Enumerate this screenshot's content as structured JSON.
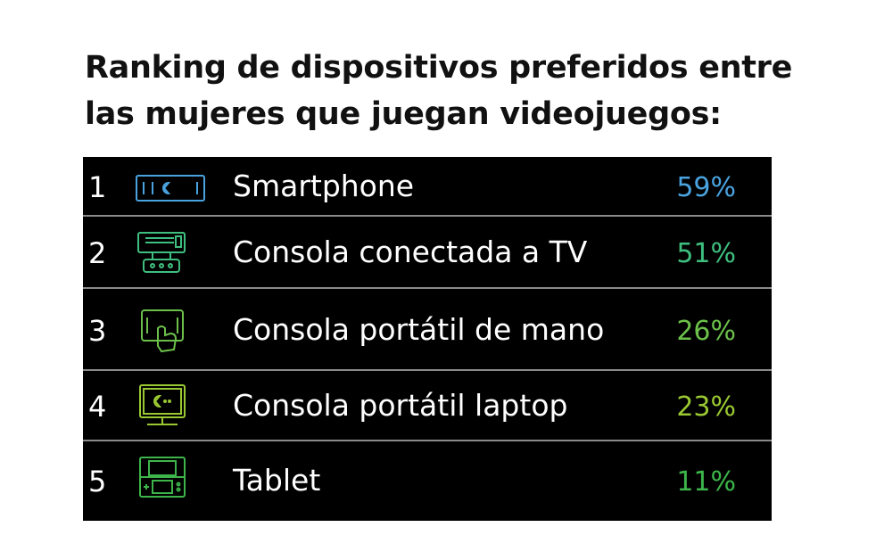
{
  "chart_data": {
    "type": "table",
    "title_lines": [
      "Ranking de dispositivos preferidos entre",
      "las mujeres que juegan videojuegos:"
    ],
    "rows": [
      {
        "rank": "1",
        "label": "Smartphone",
        "value_text": "59%",
        "value": 59,
        "icon": "smartphone-icon",
        "color": "#4aa3df"
      },
      {
        "rank": "2",
        "label": "Consola conectada a TV",
        "value_text": "51%",
        "value": 51,
        "icon": "tv-console-icon",
        "color": "#3fbf7f"
      },
      {
        "rank": "3",
        "label": "Consola portátil de mano",
        "value_text": "26%",
        "value": 26,
        "icon": "handheld-console-icon",
        "color": "#6cc04a"
      },
      {
        "rank": "4",
        "label": "Consola portátil laptop",
        "value_text": "23%",
        "value": 23,
        "icon": "laptop-console-icon",
        "color": "#9ac832"
      },
      {
        "rank": "5",
        "label": "Tablet",
        "value_text": "11%",
        "value": 11,
        "icon": "tablet-icon",
        "color": "#3db54a"
      }
    ]
  }
}
